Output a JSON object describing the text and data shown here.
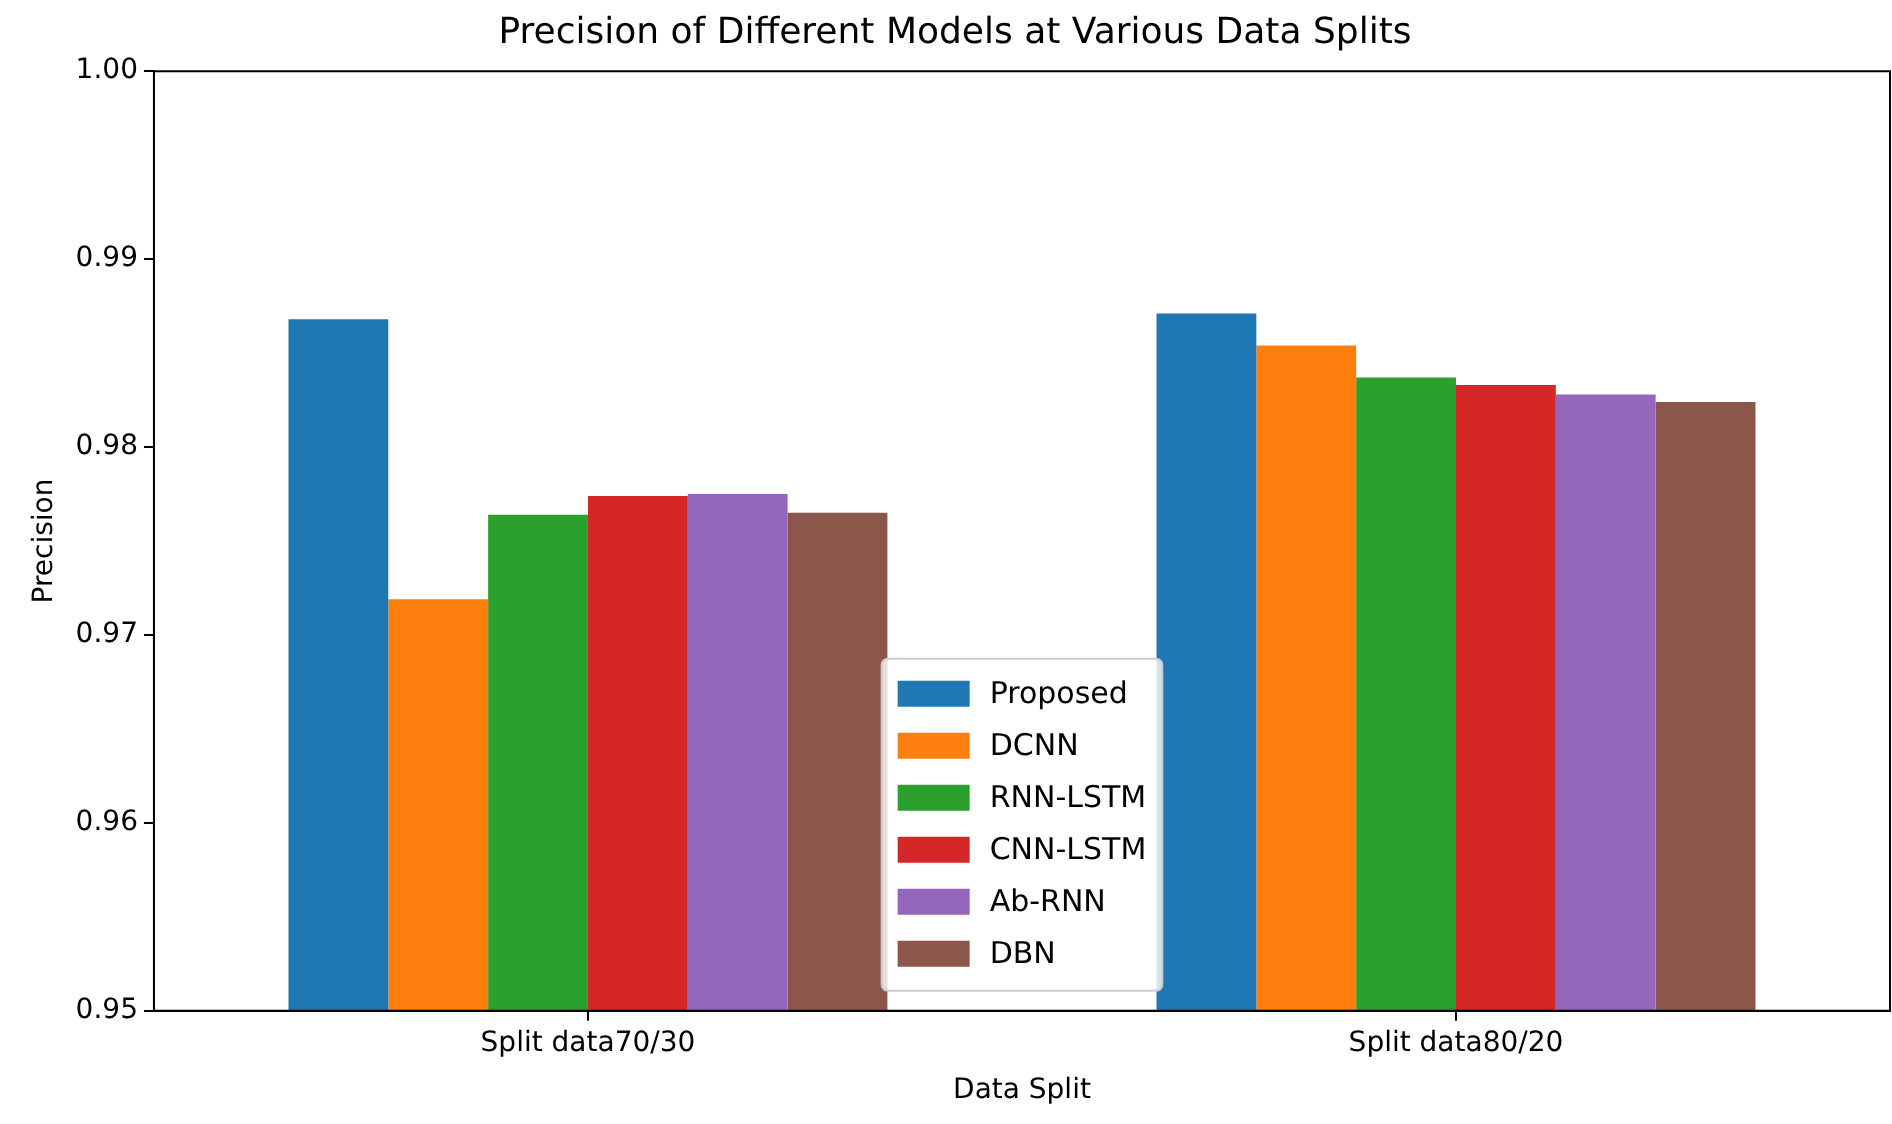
{
  "chart_data": {
    "type": "bar",
    "title": "Precision of Different Models at Various Data Splits",
    "xlabel": "Data Split",
    "ylabel": "Precision",
    "categories": [
      "Split data70/30",
      "Split data80/20"
    ],
    "series": [
      {
        "name": "Proposed",
        "color": "#1f77b4",
        "values": [
          0.9868,
          0.9871
        ]
      },
      {
        "name": "DCNN",
        "color": "#ff7f0e",
        "values": [
          0.9719,
          0.9854
        ]
      },
      {
        "name": "RNN-LSTM",
        "color": "#2ca02c",
        "values": [
          0.9764,
          0.9837
        ]
      },
      {
        "name": "CNN-LSTM",
        "color": "#d62728",
        "values": [
          0.9774,
          0.9833
        ]
      },
      {
        "name": "Ab-RNN",
        "color": "#9467bd",
        "values": [
          0.9775,
          0.9828
        ]
      },
      {
        "name": "DBN",
        "color": "#8c564b",
        "values": [
          0.9765,
          0.9824
        ]
      }
    ],
    "ylim": [
      0.95,
      1.0
    ],
    "yticks": [
      0.95,
      0.96,
      0.97,
      0.98,
      0.99,
      {
        "value": 1.0,
        "label": "1.00"
      }
    ],
    "grid": false,
    "legend": "bottom center"
  }
}
